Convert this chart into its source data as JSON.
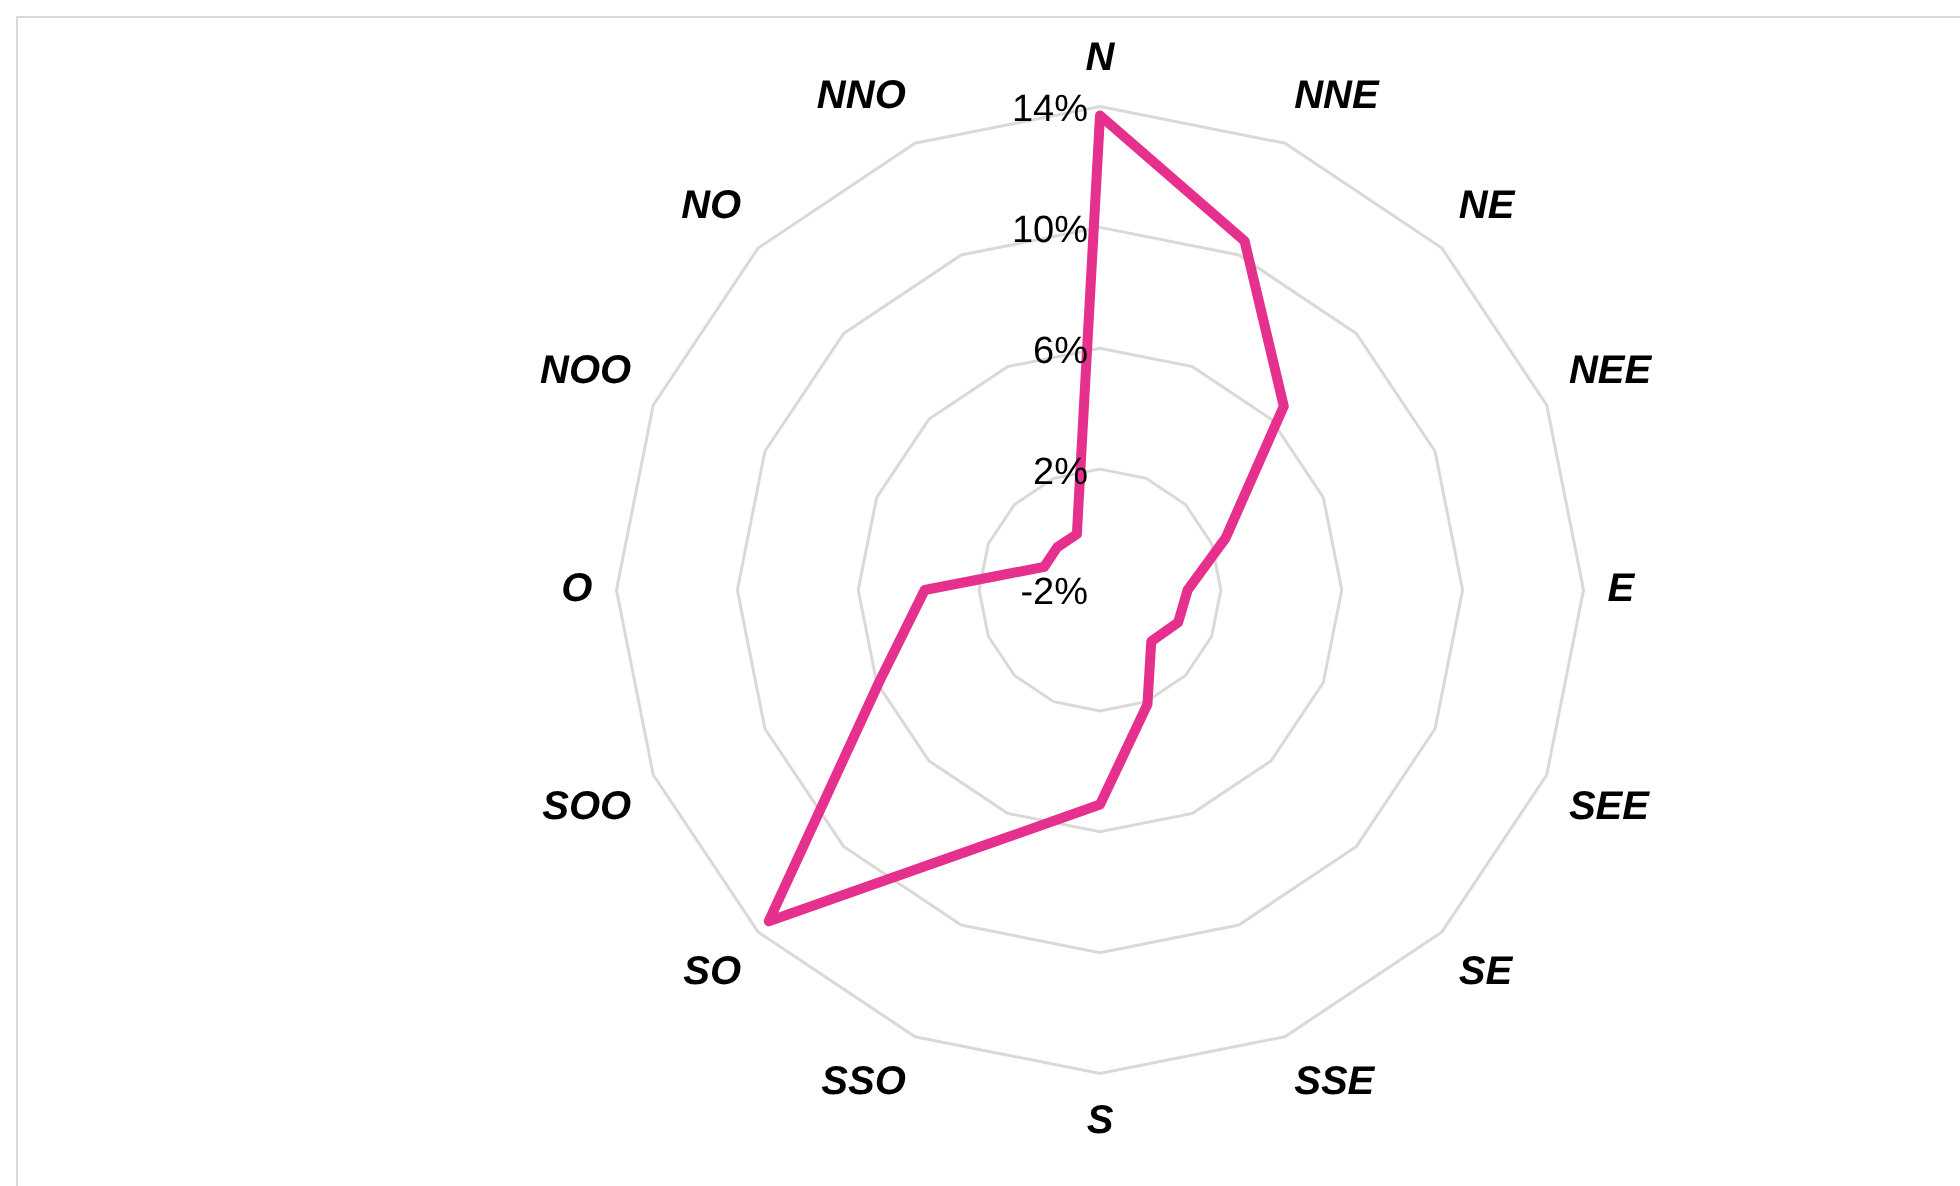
{
  "chart_data": {
    "type": "radar",
    "categories": [
      "N",
      "NNE",
      "NE",
      "NEE",
      "E",
      "SEE",
      "SE",
      "SSE",
      "S",
      "SSO",
      "SO",
      "SOO",
      "O",
      "NOO",
      "NO",
      "NNO"
    ],
    "series": [
      {
        "color": "#e6308e",
        "values": [
          13.7,
          10.5,
          6.6,
          2.5,
          0.9,
          0.8,
          0.4,
          2.1,
          5.1,
          7.0,
          13.5,
          5.9,
          3.8,
          0.0,
          0.0,
          0.0
        ]
      }
    ],
    "ylim": [
      -2,
      14
    ],
    "yticks": [
      {
        "value": -2,
        "label": "-2%"
      },
      {
        "value": 2,
        "label": "2%"
      },
      {
        "value": 6,
        "label": "6%"
      },
      {
        "value": 10,
        "label": "10%"
      },
      {
        "value": 14,
        "label": "14%"
      }
    ],
    "grid": true,
    "legend": false,
    "marker": "none"
  }
}
